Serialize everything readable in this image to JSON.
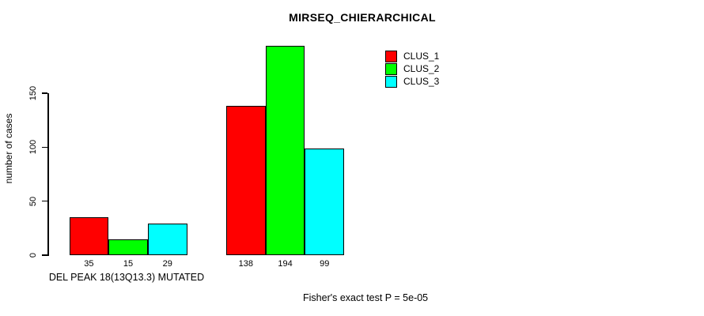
{
  "chart_data": {
    "type": "bar",
    "title": "MIRSEQ_CHIERARCHICAL",
    "ylabel": "number of cases",
    "xlabel": "DEL PEAK 18(13Q13.3) MUTATED",
    "annotation": "Fisher's exact test P = 5e-05",
    "categories": [
      "DEL PEAK 18(13Q13.3) MUTATED",
      ""
    ],
    "series": [
      {
        "name": "CLUS_1",
        "color": "#FF0000",
        "values": [
          35,
          138
        ]
      },
      {
        "name": "CLUS_2",
        "color": "#00FF00",
        "values": [
          15,
          194
        ]
      },
      {
        "name": "CLUS_3",
        "color": "#00FFFF",
        "values": [
          29,
          99
        ]
      }
    ],
    "bar_value_labels": [
      [
        35,
        15,
        29
      ],
      [
        138,
        194,
        99
      ]
    ],
    "yticks": [
      0,
      50,
      100,
      150
    ],
    "ylim": [
      0,
      150
    ],
    "grid": false,
    "legend_position": "top-right",
    "bar_border_color": "#000000",
    "background_color": "#FFFFFF",
    "text_color": "#000000"
  }
}
